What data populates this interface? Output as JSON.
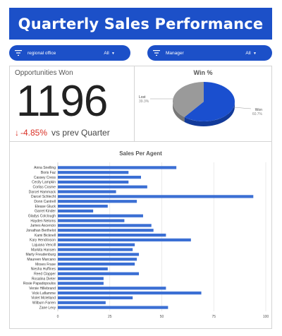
{
  "header": {
    "title": "Quarterly Sales Performance"
  },
  "filters": [
    {
      "label": "regional office",
      "value": "All"
    },
    {
      "label": "Manager",
      "value": "All"
    }
  ],
  "opportunities": {
    "title": "Opportunities Won",
    "value": "1196",
    "delta": "-4.85%",
    "delta_label": "vs prev Quarter",
    "delta_color": "#d93025"
  },
  "colors": {
    "accent": "#1c50c8",
    "bar": "#3b6fd4",
    "won": "#1a4fcf",
    "lost": "#9a9a9a"
  },
  "chart_data": [
    {
      "type": "pie",
      "title": "Win %",
      "categories": [
        "Won",
        "Lost"
      ],
      "values": [
        60.7,
        39.3
      ],
      "value_labels": [
        "60.7%",
        "39.3%"
      ]
    },
    {
      "type": "bar",
      "orientation": "horizontal",
      "title": "Sales Per Agent",
      "categories": [
        "Anna Snelling",
        "Boris Faz",
        "Cassey Cress",
        "Cecily Lampkin",
        "Corliss Cosme",
        "Darcel Hammack",
        "Darcel Schlecht",
        "Donn Cantrell",
        "Elease Gluck",
        "Garret Kinder",
        "Gladys Colclough",
        "Hayden Neloms",
        "James Ascencio",
        "Jonathan Berthelot",
        "Kami Bicknell",
        "Kary Hendrixson",
        "Lajuana Vencill",
        "Markita Hansen",
        "Marty Freudenburg",
        "Maureen Marcano",
        "Moses Frase",
        "Niesha Huffines",
        "Reed Clapper",
        "Rosalina Dieter",
        "Rosie Papadopoulos",
        "Versie Hillebrand",
        "Vicki Laflamme",
        "Violet Mclelland",
        "Wilburn Farren",
        "Zane Levy"
      ],
      "values": [
        57,
        34,
        40,
        34,
        43,
        28,
        94,
        38,
        24,
        17,
        41,
        32,
        45,
        46,
        52,
        64,
        37,
        36,
        39,
        38,
        37,
        24,
        39,
        22,
        22,
        52,
        69,
        36,
        23,
        53
      ],
      "xlim": [
        0,
        100
      ],
      "xticks": [
        0,
        25,
        50,
        75,
        100
      ]
    }
  ]
}
